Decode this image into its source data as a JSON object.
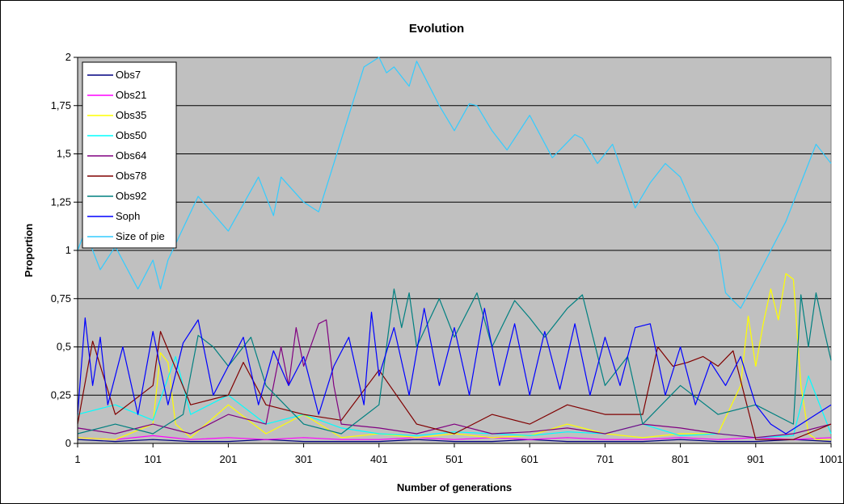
{
  "chart_data": {
    "type": "line",
    "title": "Evolution",
    "xlabel": "Number of generations",
    "ylabel": "Proportion",
    "xlim": [
      1,
      1001
    ],
    "ylim": [
      0,
      2
    ],
    "x_ticks": [
      "1",
      "101",
      "201",
      "301",
      "401",
      "501",
      "601",
      "701",
      "801",
      "901",
      "1001"
    ],
    "y_ticks": [
      "0",
      "0,25",
      "0,5",
      "0,75",
      "1",
      "1,25",
      "1,5",
      "1,75",
      "2"
    ],
    "plot_background": "#c0c0c0",
    "grid": "horizontal",
    "legend_position": "top-left",
    "series": [
      {
        "name": "Obs7",
        "color": "#000080",
        "x": [
          1,
          51,
          101,
          151,
          201,
          251,
          301,
          351,
          401,
          451,
          501,
          551,
          601,
          651,
          701,
          751,
          801,
          851,
          901,
          951,
          1001
        ],
        "values": [
          0.02,
          0.01,
          0.02,
          0.01,
          0.01,
          0.02,
          0.01,
          0.01,
          0.01,
          0.02,
          0.01,
          0.01,
          0.02,
          0.01,
          0.01,
          0.01,
          0.02,
          0.01,
          0.01,
          0.02,
          0.01
        ]
      },
      {
        "name": "Obs21",
        "color": "#ff00ff",
        "x": [
          1,
          51,
          101,
          151,
          201,
          251,
          301,
          351,
          401,
          451,
          501,
          551,
          601,
          651,
          701,
          751,
          801,
          851,
          901,
          951,
          1001
        ],
        "values": [
          0.03,
          0.02,
          0.04,
          0.02,
          0.03,
          0.02,
          0.03,
          0.02,
          0.02,
          0.03,
          0.02,
          0.03,
          0.02,
          0.03,
          0.02,
          0.02,
          0.03,
          0.02,
          0.03,
          0.02,
          0.03
        ]
      },
      {
        "name": "Obs35",
        "color": "#ffff00",
        "x": [
          1,
          51,
          101,
          111,
          121,
          131,
          151,
          201,
          251,
          301,
          351,
          401,
          451,
          501,
          551,
          601,
          651,
          701,
          751,
          801,
          851,
          881,
          891,
          901,
          911,
          921,
          931,
          941,
          951,
          961,
          971,
          981,
          1001
        ],
        "values": [
          0.03,
          0.02,
          0.1,
          0.47,
          0.42,
          0.1,
          0.03,
          0.2,
          0.05,
          0.15,
          0.03,
          0.05,
          0.03,
          0.05,
          0.03,
          0.04,
          0.1,
          0.05,
          0.03,
          0.05,
          0.05,
          0.3,
          0.66,
          0.4,
          0.62,
          0.8,
          0.64,
          0.88,
          0.85,
          0.3,
          0.05,
          0.02,
          0.02
        ]
      },
      {
        "name": "Obs50",
        "color": "#00ffff",
        "x": [
          1,
          51,
          101,
          131,
          151,
          201,
          251,
          301,
          351,
          401,
          451,
          501,
          551,
          601,
          651,
          701,
          751,
          801,
          851,
          901,
          951,
          971,
          1001
        ],
        "values": [
          0.15,
          0.2,
          0.12,
          0.45,
          0.15,
          0.25,
          0.1,
          0.15,
          0.08,
          0.05,
          0.04,
          0.06,
          0.05,
          0.04,
          0.06,
          0.05,
          0.1,
          0.04,
          0.05,
          0.03,
          0.04,
          0.35,
          0.05
        ]
      },
      {
        "name": "Obs64",
        "color": "#800080",
        "x": [
          1,
          51,
          101,
          151,
          201,
          251,
          271,
          281,
          291,
          301,
          321,
          331,
          341,
          351,
          401,
          451,
          501,
          551,
          601,
          651,
          701,
          751,
          801,
          851,
          901,
          951,
          1001
        ],
        "values": [
          0.08,
          0.05,
          0.1,
          0.05,
          0.15,
          0.1,
          0.5,
          0.3,
          0.6,
          0.4,
          0.62,
          0.64,
          0.3,
          0.1,
          0.08,
          0.05,
          0.1,
          0.05,
          0.06,
          0.08,
          0.05,
          0.1,
          0.08,
          0.05,
          0.03,
          0.05,
          0.1
        ]
      },
      {
        "name": "Obs78",
        "color": "#800000",
        "x": [
          1,
          21,
          51,
          101,
          111,
          151,
          201,
          221,
          251,
          301,
          351,
          401,
          451,
          501,
          551,
          601,
          651,
          701,
          751,
          771,
          791,
          811,
          831,
          851,
          871,
          901,
          951,
          1001
        ],
        "values": [
          0.1,
          0.53,
          0.15,
          0.3,
          0.58,
          0.2,
          0.25,
          0.42,
          0.2,
          0.15,
          0.12,
          0.38,
          0.1,
          0.05,
          0.15,
          0.1,
          0.2,
          0.15,
          0.15,
          0.5,
          0.4,
          0.42,
          0.45,
          0.4,
          0.48,
          0.02,
          0.02,
          0.1
        ]
      },
      {
        "name": "Obs92",
        "color": "#008080",
        "x": [
          1,
          51,
          101,
          141,
          161,
          181,
          201,
          231,
          251,
          301,
          351,
          401,
          411,
          421,
          431,
          441,
          451,
          481,
          501,
          531,
          551,
          581,
          601,
          621,
          651,
          671,
          701,
          731,
          751,
          801,
          851,
          901,
          951,
          961,
          971,
          981,
          991,
          1001
        ],
        "values": [
          0.05,
          0.1,
          0.05,
          0.15,
          0.56,
          0.5,
          0.4,
          0.55,
          0.3,
          0.1,
          0.05,
          0.2,
          0.5,
          0.8,
          0.6,
          0.78,
          0.5,
          0.75,
          0.55,
          0.78,
          0.5,
          0.74,
          0.65,
          0.55,
          0.7,
          0.77,
          0.3,
          0.45,
          0.1,
          0.3,
          0.15,
          0.2,
          0.1,
          0.77,
          0.5,
          0.78,
          0.6,
          0.43
        ]
      },
      {
        "name": "Soph",
        "color": "#0000ff",
        "x": [
          1,
          11,
          21,
          31,
          41,
          61,
          81,
          101,
          121,
          141,
          161,
          181,
          201,
          221,
          241,
          261,
          281,
          301,
          321,
          341,
          361,
          381,
          391,
          401,
          421,
          441,
          461,
          481,
          501,
          521,
          541,
          561,
          581,
          601,
          621,
          641,
          661,
          681,
          701,
          721,
          741,
          761,
          781,
          801,
          821,
          841,
          861,
          881,
          901,
          921,
          941,
          961,
          981,
          1001
        ],
        "values": [
          0.15,
          0.65,
          0.3,
          0.55,
          0.2,
          0.5,
          0.15,
          0.58,
          0.2,
          0.52,
          0.64,
          0.25,
          0.4,
          0.55,
          0.2,
          0.48,
          0.3,
          0.45,
          0.15,
          0.4,
          0.55,
          0.2,
          0.68,
          0.35,
          0.6,
          0.25,
          0.7,
          0.3,
          0.6,
          0.25,
          0.7,
          0.3,
          0.62,
          0.25,
          0.58,
          0.28,
          0.62,
          0.25,
          0.55,
          0.3,
          0.6,
          0.62,
          0.25,
          0.5,
          0.2,
          0.42,
          0.3,
          0.45,
          0.2,
          0.1,
          0.05,
          0.1,
          0.15,
          0.2
        ]
      },
      {
        "name": "Size of pie",
        "color": "#33ccff",
        "x": [
          1,
          11,
          31,
          51,
          81,
          101,
          111,
          121,
          161,
          201,
          241,
          261,
          271,
          301,
          321,
          341,
          361,
          381,
          401,
          411,
          421,
          441,
          451,
          481,
          501,
          521,
          531,
          551,
          571,
          601,
          631,
          661,
          671,
          691,
          711,
          741,
          761,
          781,
          801,
          821,
          851,
          861,
          881,
          901,
          941,
          981,
          1001
        ],
        "values": [
          1.0,
          1.1,
          0.9,
          1.02,
          0.8,
          0.95,
          0.8,
          0.95,
          1.28,
          1.1,
          1.38,
          1.18,
          1.38,
          1.25,
          1.2,
          1.45,
          1.7,
          1.95,
          2.0,
          1.92,
          1.95,
          1.85,
          1.98,
          1.75,
          1.62,
          1.76,
          1.75,
          1.62,
          1.52,
          1.7,
          1.48,
          1.6,
          1.58,
          1.45,
          1.55,
          1.22,
          1.35,
          1.45,
          1.38,
          1.2,
          1.02,
          0.78,
          0.7,
          0.85,
          1.15,
          1.55,
          1.45
        ]
      }
    ]
  }
}
